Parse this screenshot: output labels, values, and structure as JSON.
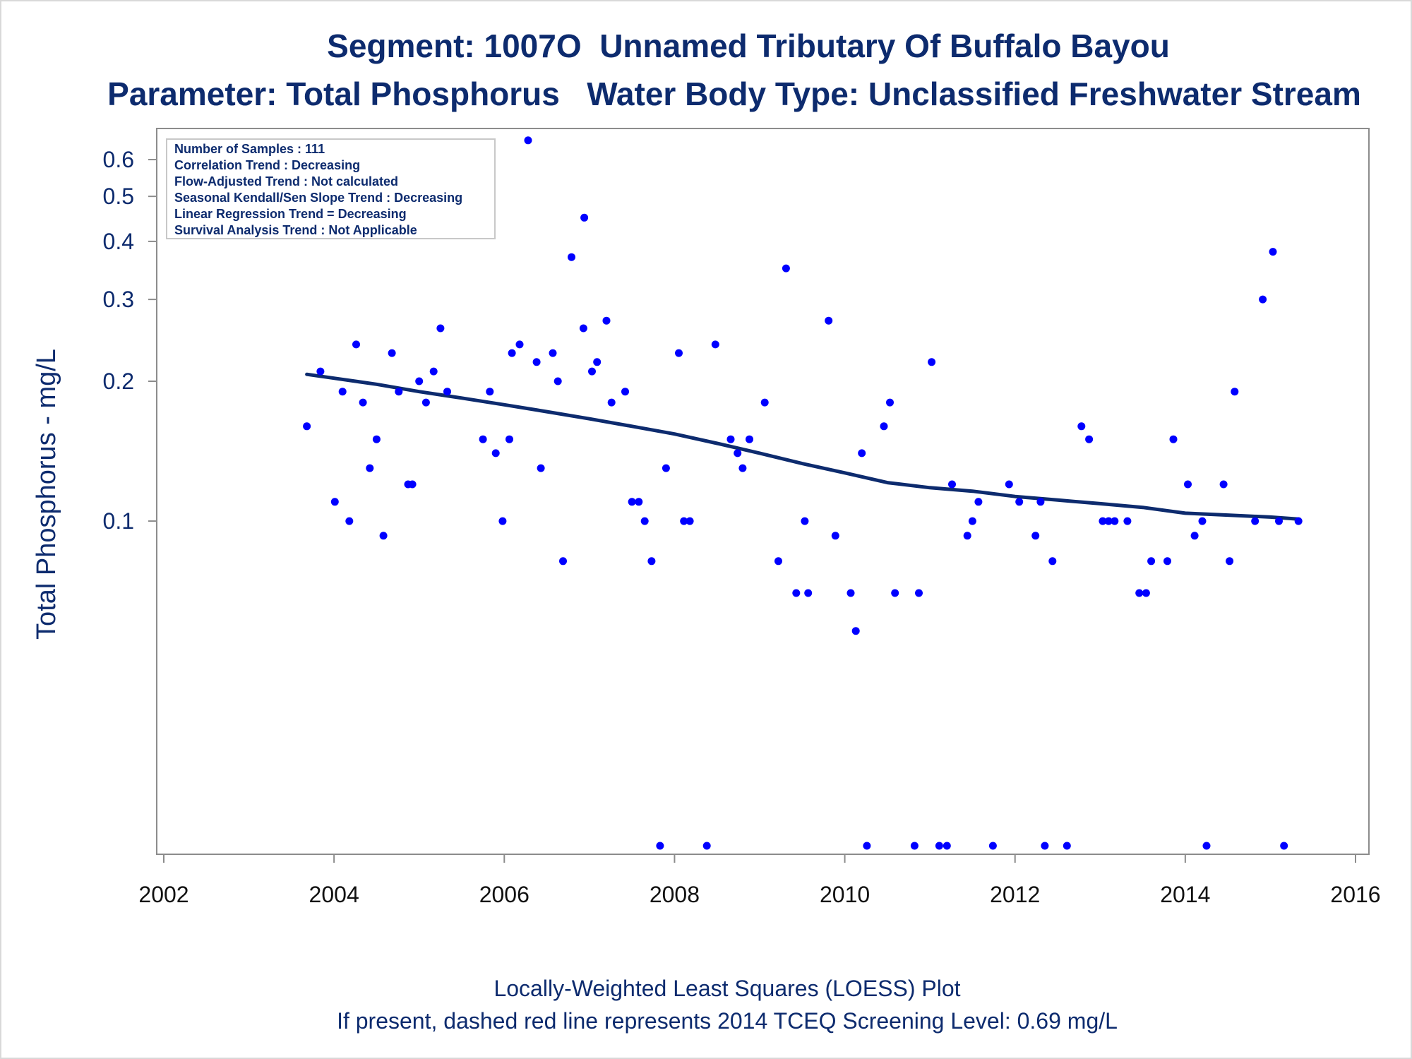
{
  "chart_data": {
    "type": "scatter",
    "title": "Segment: 1007O  Unnamed Tributary Of Buffalo Bayou",
    "subtitle": "Parameter: Total Phosphorus   Water Body Type: Unclassified Freshwater Stream",
    "xlabel": "",
    "ylabel": "Total Phosphorus - mg/L",
    "footnotes": [
      "Locally-Weighted Least Squares (LOESS) Plot",
      "If present, dashed red line represents 2014 TCEQ Screening Level: 0.69 mg/L"
    ],
    "xlim": [
      2002,
      2016
    ],
    "x_ticks": [
      2002,
      2004,
      2006,
      2008,
      2010,
      2012,
      2014,
      2016
    ],
    "ylim": [
      0.02,
      0.7
    ],
    "y_scale": "log",
    "y_ticks": [
      0.1,
      0.2,
      0.3,
      0.4,
      0.5,
      0.6
    ],
    "y_tick_labels": [
      "0.1",
      "0.2",
      "0.3",
      "0.4",
      "0.5",
      "0.6"
    ],
    "grid": false,
    "legend": "none",
    "stats_box": {
      "placement": "top-left",
      "lines": [
        "Number of Samples : 111",
        "Correlation Trend : Decreasing",
        "Flow-Adjusted Trend : Not calculated",
        "Seasonal Kendall/Sen Slope Trend : Decreasing",
        "Linear Regression Trend = Decreasing",
        "Survival Analysis Trend : Not Applicable"
      ]
    },
    "colors": {
      "points": "#0000ff",
      "loess": "#0d2b6e",
      "text": "#0d2b6e",
      "frame": "#8c8c8c"
    },
    "series": [
      {
        "kind": "points",
        "points": [
          [
            2003.68,
            0.16
          ],
          [
            2003.84,
            0.21
          ],
          [
            2004.01,
            0.11
          ],
          [
            2004.1,
            0.19
          ],
          [
            2004.18,
            0.1
          ],
          [
            2004.26,
            0.24
          ],
          [
            2004.34,
            0.18
          ],
          [
            2004.42,
            0.13
          ],
          [
            2004.5,
            0.15
          ],
          [
            2004.58,
            0.093
          ],
          [
            2004.68,
            0.23
          ],
          [
            2004.76,
            0.19
          ],
          [
            2004.87,
            0.12
          ],
          [
            2004.92,
            0.12
          ],
          [
            2005.0,
            0.2
          ],
          [
            2005.08,
            0.18
          ],
          [
            2005.17,
            0.21
          ],
          [
            2005.25,
            0.26
          ],
          [
            2005.33,
            0.19
          ],
          [
            2005.75,
            0.15
          ],
          [
            2005.83,
            0.19
          ],
          [
            2005.9,
            0.14
          ],
          [
            2005.98,
            0.1
          ],
          [
            2006.06,
            0.15
          ],
          [
            2006.09,
            0.23
          ],
          [
            2006.18,
            0.24
          ],
          [
            2006.28,
            0.66
          ],
          [
            2006.38,
            0.22
          ],
          [
            2006.43,
            0.13
          ],
          [
            2006.57,
            0.23
          ],
          [
            2006.63,
            0.2
          ],
          [
            2006.69,
            0.082
          ],
          [
            2006.79,
            0.37
          ],
          [
            2006.94,
            0.45
          ],
          [
            2006.93,
            0.26
          ],
          [
            2007.03,
            0.21
          ],
          [
            2007.09,
            0.22
          ],
          [
            2007.2,
            0.27
          ],
          [
            2007.26,
            0.18
          ],
          [
            2007.42,
            0.19
          ],
          [
            2007.5,
            0.11
          ],
          [
            2007.58,
            0.11
          ],
          [
            2007.65,
            0.1
          ],
          [
            2007.73,
            0.082
          ],
          [
            2007.83,
            0.02
          ],
          [
            2007.9,
            0.13
          ],
          [
            2008.05,
            0.23
          ],
          [
            2008.11,
            0.1
          ],
          [
            2008.18,
            0.1
          ],
          [
            2008.38,
            0.02
          ],
          [
            2008.48,
            0.24
          ],
          [
            2008.66,
            0.15
          ],
          [
            2008.74,
            0.14
          ],
          [
            2008.8,
            0.13
          ],
          [
            2008.88,
            0.15
          ],
          [
            2009.06,
            0.18
          ],
          [
            2009.22,
            0.082
          ],
          [
            2009.31,
            0.35
          ],
          [
            2009.43,
            0.07
          ],
          [
            2009.53,
            0.1
          ],
          [
            2009.57,
            0.07
          ],
          [
            2009.81,
            0.27
          ],
          [
            2009.89,
            0.093
          ],
          [
            2010.07,
            0.07
          ],
          [
            2010.13,
            0.058
          ],
          [
            2010.2,
            0.14
          ],
          [
            2010.26,
            0.02
          ],
          [
            2010.46,
            0.16
          ],
          [
            2010.53,
            0.18
          ],
          [
            2010.59,
            0.07
          ],
          [
            2010.82,
            0.02
          ],
          [
            2010.87,
            0.07
          ],
          [
            2011.02,
            0.22
          ],
          [
            2011.11,
            0.02
          ],
          [
            2011.2,
            0.02
          ],
          [
            2011.26,
            0.12
          ],
          [
            2011.44,
            0.093
          ],
          [
            2011.5,
            0.1
          ],
          [
            2011.57,
            0.11
          ],
          [
            2011.74,
            0.02
          ],
          [
            2011.93,
            0.12
          ],
          [
            2012.05,
            0.11
          ],
          [
            2012.24,
            0.093
          ],
          [
            2012.3,
            0.11
          ],
          [
            2012.35,
            0.02
          ],
          [
            2012.44,
            0.082
          ],
          [
            2012.61,
            0.02
          ],
          [
            2012.78,
            0.16
          ],
          [
            2012.87,
            0.15
          ],
          [
            2013.03,
            0.1
          ],
          [
            2013.1,
            0.1
          ],
          [
            2013.17,
            0.1
          ],
          [
            2013.32,
            0.1
          ],
          [
            2013.46,
            0.07
          ],
          [
            2013.54,
            0.07
          ],
          [
            2013.6,
            0.082
          ],
          [
            2013.79,
            0.082
          ],
          [
            2013.86,
            0.15
          ],
          [
            2014.03,
            0.12
          ],
          [
            2014.11,
            0.093
          ],
          [
            2014.2,
            0.1
          ],
          [
            2014.25,
            0.02
          ],
          [
            2014.45,
            0.12
          ],
          [
            2014.52,
            0.082
          ],
          [
            2014.58,
            0.19
          ],
          [
            2014.82,
            0.1
          ],
          [
            2014.91,
            0.3
          ],
          [
            2015.03,
            0.38
          ],
          [
            2015.1,
            0.1
          ],
          [
            2015.16,
            0.02
          ],
          [
            2015.33,
            0.1
          ]
        ]
      },
      {
        "kind": "loess",
        "points": [
          [
            2003.68,
            0.207
          ],
          [
            2004.0,
            0.203
          ],
          [
            2004.5,
            0.197
          ],
          [
            2005.0,
            0.19
          ],
          [
            2005.5,
            0.184
          ],
          [
            2006.0,
            0.178
          ],
          [
            2006.5,
            0.172
          ],
          [
            2007.0,
            0.166
          ],
          [
            2007.5,
            0.16
          ],
          [
            2008.0,
            0.154
          ],
          [
            2008.5,
            0.147
          ],
          [
            2009.0,
            0.14
          ],
          [
            2009.5,
            0.133
          ],
          [
            2010.0,
            0.127
          ],
          [
            2010.5,
            0.121
          ],
          [
            2011.0,
            0.118
          ],
          [
            2011.5,
            0.116
          ],
          [
            2012.0,
            0.113
          ],
          [
            2012.5,
            0.111
          ],
          [
            2013.0,
            0.109
          ],
          [
            2013.5,
            0.107
          ],
          [
            2014.0,
            0.104
          ],
          [
            2014.5,
            0.103
          ],
          [
            2015.0,
            0.102
          ],
          [
            2015.33,
            0.101
          ]
        ]
      }
    ]
  }
}
